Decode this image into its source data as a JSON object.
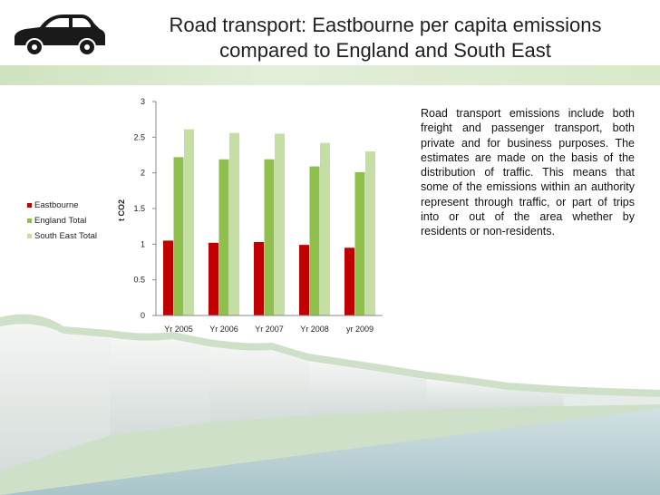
{
  "title": "Road transport:  Eastbourne per capita emissions compared to England and South East",
  "description": "Road transport emissions include both freight and passenger transport, both private and for business purposes. The estimates are made on the basis of the distribution of traffic. This means that some of the emissions within an authority represent through traffic, or part of trips into or out of the area whether by residents or non-residents.",
  "icons": {
    "car": "car-icon",
    "background": "white-cliffs-photo"
  },
  "colors": {
    "eastbourne": "#c00000",
    "england": "#8fbf4d",
    "south_east": "#c4dea3"
  },
  "chart_data": {
    "type": "bar",
    "categories": [
      "Yr 2005",
      "Yr 2006",
      "Yr 2007",
      "Yr 2008",
      "yr 2009"
    ],
    "series": [
      {
        "name": "Eastbourne",
        "values": [
          1.05,
          1.02,
          1.03,
          0.99,
          0.95
        ]
      },
      {
        "name": "England Total",
        "values": [
          2.22,
          2.19,
          2.19,
          2.09,
          2.01
        ]
      },
      {
        "name": "South East Total",
        "values": [
          2.61,
          2.56,
          2.55,
          2.42,
          2.3
        ]
      }
    ],
    "ylabel": "t CO2",
    "yticks": [
      "0",
      "0.5",
      "1",
      "1.5",
      "2",
      "2.5",
      "3"
    ],
    "ylim": [
      0,
      3
    ],
    "legend_position": "left",
    "grid": false
  }
}
